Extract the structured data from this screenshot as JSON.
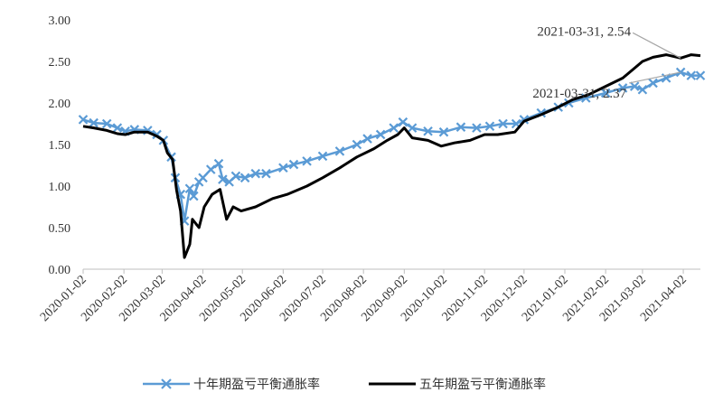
{
  "chart_data": {
    "type": "line",
    "title": "",
    "xlabel": "",
    "ylabel": "",
    "ylim": [
      0,
      3
    ],
    "yticks": [
      "0.00",
      "0.50",
      "1.00",
      "1.50",
      "2.00",
      "2.50",
      "3.00"
    ],
    "xticks": [
      "2020-01-02",
      "2020-02-02",
      "2020-03-02",
      "2020-04-02",
      "2020-05-02",
      "2020-06-02",
      "2020-07-02",
      "2020-08-02",
      "2020-09-02",
      "2020-10-02",
      "2020-11-02",
      "2020-12-02",
      "2021-01-02",
      "2021-02-02",
      "2021-03-02",
      "2021-04-02"
    ],
    "x_range": [
      "2020-01-02",
      "2021-04-15"
    ],
    "grid": false,
    "legend_position": "bottom",
    "series": [
      {
        "name": "十年期盈亏平衡通胀率",
        "color": "#5b9bd5",
        "marker": "x",
        "points": [
          [
            "2020-01-02",
            1.8
          ],
          [
            "2020-01-10",
            1.76
          ],
          [
            "2020-01-20",
            1.75
          ],
          [
            "2020-01-28",
            1.7
          ],
          [
            "2020-02-03",
            1.66
          ],
          [
            "2020-02-10",
            1.68
          ],
          [
            "2020-02-20",
            1.67
          ],
          [
            "2020-02-27",
            1.62
          ],
          [
            "2020-03-03",
            1.55
          ],
          [
            "2020-03-09",
            1.35
          ],
          [
            "2020-03-12",
            1.1
          ],
          [
            "2020-03-16",
            0.9
          ],
          [
            "2020-03-19",
            0.58
          ],
          [
            "2020-03-23",
            0.97
          ],
          [
            "2020-03-26",
            0.88
          ],
          [
            "2020-03-30",
            1.05
          ],
          [
            "2020-04-02",
            1.1
          ],
          [
            "2020-04-08",
            1.2
          ],
          [
            "2020-04-14",
            1.27
          ],
          [
            "2020-04-17",
            1.08
          ],
          [
            "2020-04-22",
            1.05
          ],
          [
            "2020-04-27",
            1.12
          ],
          [
            "2020-05-04",
            1.1
          ],
          [
            "2020-05-12",
            1.15
          ],
          [
            "2020-05-20",
            1.15
          ],
          [
            "2020-06-02",
            1.22
          ],
          [
            "2020-06-10",
            1.26
          ],
          [
            "2020-06-20",
            1.3
          ],
          [
            "2020-07-02",
            1.36
          ],
          [
            "2020-07-15",
            1.42
          ],
          [
            "2020-07-28",
            1.5
          ],
          [
            "2020-08-05",
            1.57
          ],
          [
            "2020-08-15",
            1.62
          ],
          [
            "2020-08-25",
            1.7
          ],
          [
            "2020-09-01",
            1.77
          ],
          [
            "2020-09-08",
            1.7
          ],
          [
            "2020-09-20",
            1.66
          ],
          [
            "2020-10-02",
            1.65
          ],
          [
            "2020-10-15",
            1.71
          ],
          [
            "2020-10-27",
            1.7
          ],
          [
            "2020-11-06",
            1.72
          ],
          [
            "2020-11-16",
            1.75
          ],
          [
            "2020-11-26",
            1.75
          ],
          [
            "2020-12-02",
            1.8
          ],
          [
            "2020-12-15",
            1.88
          ],
          [
            "2020-12-28",
            1.95
          ],
          [
            "2021-01-05",
            2.0
          ],
          [
            "2021-01-18",
            2.06
          ],
          [
            "2021-02-02",
            2.12
          ],
          [
            "2021-02-15",
            2.18
          ],
          [
            "2021-02-24",
            2.2
          ],
          [
            "2021-03-02",
            2.16
          ],
          [
            "2021-03-10",
            2.24
          ],
          [
            "2021-03-20",
            2.3
          ],
          [
            "2021-03-31",
            2.37
          ],
          [
            "2021-04-08",
            2.33
          ],
          [
            "2021-04-15",
            2.33
          ]
        ]
      },
      {
        "name": "五年期盈亏平衡通胀率",
        "color": "#000000",
        "marker": "none",
        "points": [
          [
            "2020-01-02",
            1.72
          ],
          [
            "2020-01-10",
            1.7
          ],
          [
            "2020-01-20",
            1.67
          ],
          [
            "2020-01-28",
            1.63
          ],
          [
            "2020-02-03",
            1.62
          ],
          [
            "2020-02-10",
            1.65
          ],
          [
            "2020-02-20",
            1.65
          ],
          [
            "2020-02-27",
            1.6
          ],
          [
            "2020-03-03",
            1.55
          ],
          [
            "2020-03-06",
            1.4
          ],
          [
            "2020-03-10",
            1.32
          ],
          [
            "2020-03-13",
            0.95
          ],
          [
            "2020-03-16",
            0.7
          ],
          [
            "2020-03-19",
            0.14
          ],
          [
            "2020-03-23",
            0.3
          ],
          [
            "2020-03-25",
            0.6
          ],
          [
            "2020-03-30",
            0.5
          ],
          [
            "2020-04-03",
            0.75
          ],
          [
            "2020-04-09",
            0.9
          ],
          [
            "2020-04-15",
            0.96
          ],
          [
            "2020-04-20",
            0.6
          ],
          [
            "2020-04-25",
            0.75
          ],
          [
            "2020-05-01",
            0.7
          ],
          [
            "2020-05-12",
            0.75
          ],
          [
            "2020-05-25",
            0.85
          ],
          [
            "2020-06-05",
            0.9
          ],
          [
            "2020-06-20",
            1.0
          ],
          [
            "2020-07-02",
            1.1
          ],
          [
            "2020-07-15",
            1.22
          ],
          [
            "2020-07-28",
            1.35
          ],
          [
            "2020-08-10",
            1.45
          ],
          [
            "2020-08-20",
            1.55
          ],
          [
            "2020-08-28",
            1.62
          ],
          [
            "2020-09-02",
            1.7
          ],
          [
            "2020-09-08",
            1.58
          ],
          [
            "2020-09-20",
            1.55
          ],
          [
            "2020-09-30",
            1.48
          ],
          [
            "2020-10-10",
            1.52
          ],
          [
            "2020-10-22",
            1.55
          ],
          [
            "2020-11-02",
            1.62
          ],
          [
            "2020-11-12",
            1.62
          ],
          [
            "2020-11-25",
            1.65
          ],
          [
            "2020-12-02",
            1.78
          ],
          [
            "2020-12-15",
            1.86
          ],
          [
            "2020-12-28",
            1.95
          ],
          [
            "2021-01-08",
            2.04
          ],
          [
            "2021-01-20",
            2.1
          ],
          [
            "2021-02-02",
            2.2
          ],
          [
            "2021-02-15",
            2.3
          ],
          [
            "2021-02-24",
            2.42
          ],
          [
            "2021-03-02",
            2.5
          ],
          [
            "2021-03-10",
            2.55
          ],
          [
            "2021-03-20",
            2.58
          ],
          [
            "2021-03-31",
            2.54
          ],
          [
            "2021-04-08",
            2.58
          ],
          [
            "2021-04-15",
            2.57
          ]
        ]
      }
    ],
    "annotations": [
      {
        "text": "2021-03-31, 2.54",
        "x": "2021-03-31",
        "y": 2.54,
        "series": 1
      },
      {
        "text": "2021-03-31, 2.37",
        "x": "2021-03-31",
        "y": 2.37,
        "series": 0
      }
    ]
  }
}
